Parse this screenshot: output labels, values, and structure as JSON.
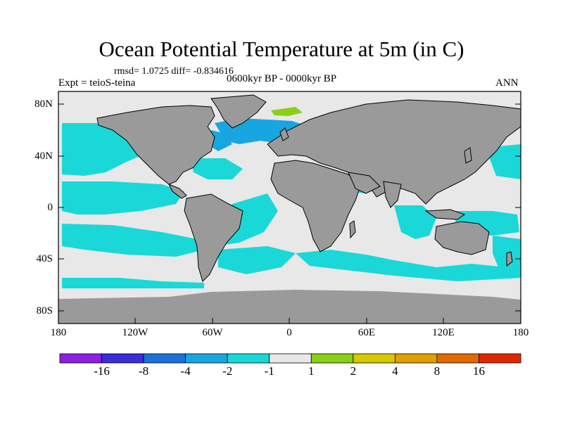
{
  "title": "Ocean Potential Temperature at 5m (in C)",
  "stats": "rmsd= 1.0725 diff= -0.834616",
  "experiment": "Expt = teioS-teina",
  "period": "0600kyr BP - 0000kyr BP",
  "season": "ANN",
  "y_ticks": [
    "80N",
    "40N",
    "0",
    "40S",
    "80S"
  ],
  "x_ticks": [
    "180",
    "120W",
    "60W",
    "0",
    "60E",
    "120E",
    "180"
  ],
  "colorbar": {
    "labels": [
      "-16",
      "-8",
      "-4",
      "-2",
      "-1",
      "1",
      "2",
      "4",
      "8",
      "16"
    ],
    "colors": [
      "#8c1fe0",
      "#3a2fd6",
      "#1a72d8",
      "#18a6e0",
      "#1ad8d8",
      "#e8e8e8",
      "#8ad018",
      "#d8c800",
      "#e0a000",
      "#e06a00",
      "#e02800"
    ]
  },
  "map": {
    "land_color": "#9a9a9a",
    "ocean_color": "#e8e8e8",
    "anomaly_color": "#1ad8d8",
    "strong_color": "#18a6e0"
  }
}
